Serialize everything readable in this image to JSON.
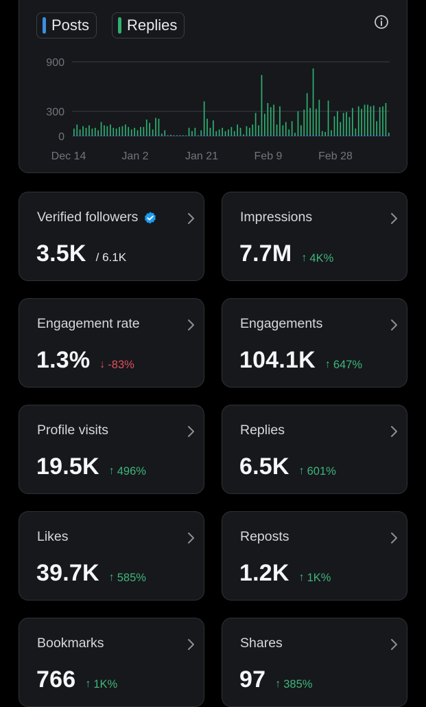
{
  "legend": {
    "posts": {
      "label": "Posts",
      "color": "#3a8fe0"
    },
    "replies": {
      "label": "Replies",
      "color": "#2fb070"
    }
  },
  "chart_data": {
    "type": "bar",
    "series": [
      {
        "name": "Posts",
        "color": "#3a8fe0"
      },
      {
        "name": "Replies",
        "color": "#2fb070"
      }
    ],
    "y_ticks": [
      "900",
      "300",
      "0"
    ],
    "ylim": [
      0,
      900
    ],
    "x_tick_labels": [
      "Dec 14",
      "Jan 2",
      "Jan 21",
      "Feb 9",
      "Feb 28"
    ],
    "grid": true,
    "replies_values": [
      90,
      140,
      80,
      120,
      100,
      130,
      90,
      100,
      70,
      170,
      130,
      120,
      140,
      100,
      90,
      110,
      120,
      140,
      110,
      80,
      100,
      70,
      110,
      110,
      200,
      160,
      80,
      220,
      210,
      30,
      70,
      10,
      15,
      10,
      10,
      10,
      10,
      5,
      100,
      60,
      100,
      10,
      70,
      420,
      210,
      100,
      190,
      60,
      80,
      100,
      60,
      80,
      110,
      60,
      140,
      100,
      20,
      120,
      100,
      140,
      280,
      130,
      740,
      270,
      400,
      350,
      380,
      140,
      360,
      130,
      170,
      80,
      180,
      40,
      300,
      130,
      320,
      520,
      340,
      820,
      330,
      440,
      60,
      50,
      430,
      70,
      240,
      300,
      170,
      280,
      290,
      230,
      340,
      90,
      360,
      330,
      380,
      380,
      360,
      370,
      180,
      350,
      360,
      400,
      40
    ],
    "posts_values": [
      15,
      12,
      12,
      12,
      10,
      10,
      10,
      10,
      8,
      15,
      12,
      10,
      12,
      8,
      8,
      10,
      10,
      12,
      10,
      8,
      8,
      6,
      10,
      10,
      12,
      12,
      8,
      15,
      12,
      5,
      6,
      3,
      3,
      3,
      3,
      3,
      3,
      2,
      10,
      6,
      10,
      3,
      6,
      18,
      12,
      8,
      12,
      6,
      8,
      8,
      6,
      6,
      8,
      6,
      10,
      8,
      3,
      8,
      8,
      10,
      12,
      8,
      15,
      12,
      15,
      12,
      15,
      8,
      15,
      8,
      10,
      6,
      10,
      4,
      12,
      8,
      12,
      18,
      15,
      20,
      12,
      15,
      6,
      5,
      15,
      6,
      12,
      12,
      10,
      12,
      12,
      10,
      12,
      6,
      15,
      12,
      15,
      15,
      15,
      15,
      10,
      15,
      15,
      15,
      4
    ]
  },
  "stats": [
    {
      "label": "Verified followers",
      "value": "3.5K",
      "sub": "/ 6.1K",
      "verified": true
    },
    {
      "label": "Impressions",
      "value": "7.7M",
      "change": "4K%",
      "dir": "up"
    },
    {
      "label": "Engagement rate",
      "value": "1.3%",
      "change": "-83%",
      "dir": "down"
    },
    {
      "label": "Engagements",
      "value": "104.1K",
      "change": "647%",
      "dir": "up"
    },
    {
      "label": "Profile visits",
      "value": "19.5K",
      "change": "496%",
      "dir": "up"
    },
    {
      "label": "Replies",
      "value": "6.5K",
      "change": "601%",
      "dir": "up"
    },
    {
      "label": "Likes",
      "value": "39.7K",
      "change": "585%",
      "dir": "up"
    },
    {
      "label": "Reposts",
      "value": "1.2K",
      "change": "1K%",
      "dir": "up"
    },
    {
      "label": "Bookmarks",
      "value": "766",
      "change": "1K%",
      "dir": "up"
    },
    {
      "label": "Shares",
      "value": "97",
      "change": "385%",
      "dir": "up"
    }
  ],
  "colors": {
    "up": "#3fb67a",
    "down": "#e0505a",
    "verified": "#1d9bf0"
  },
  "icons": {
    "info": "info-icon",
    "chevron": "chevron-right-icon",
    "verified": "verified-badge-icon"
  }
}
